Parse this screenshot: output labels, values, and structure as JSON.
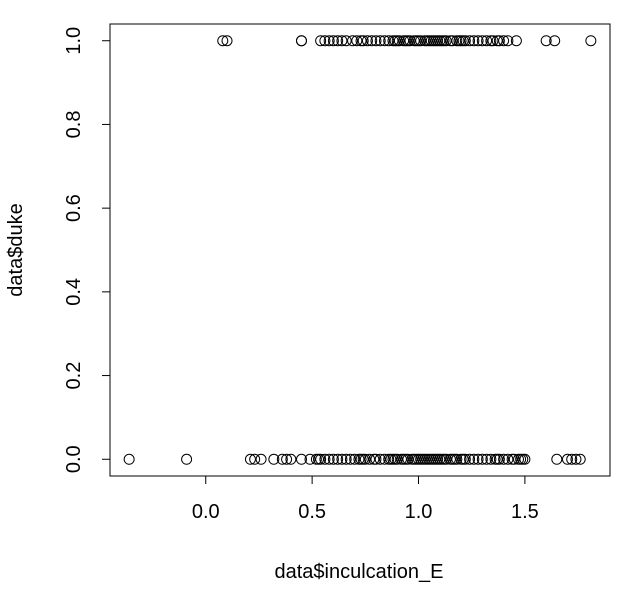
{
  "chart_data": {
    "type": "scatter",
    "xlabel": "data$inculcation_E",
    "ylabel": "data$duke",
    "xlim": [
      -0.45,
      1.9
    ],
    "ylim": [
      -0.04,
      1.04
    ],
    "x_ticks": [
      0.0,
      0.5,
      1.0,
      1.5
    ],
    "x_tick_labels": [
      "0.0",
      "0.5",
      "1.0",
      "1.5"
    ],
    "y_ticks": [
      0.0,
      0.2,
      0.4,
      0.6,
      0.8,
      1.0
    ],
    "y_tick_labels": [
      "0.0",
      "0.2",
      "0.4",
      "0.6",
      "0.8",
      "1.0"
    ],
    "grid": false,
    "marker": "open-circle",
    "color": "#000000",
    "series": [
      {
        "x": [
          0.08,
          0.1,
          0.45,
          0.45,
          0.54,
          0.56,
          0.58,
          0.6,
          0.62,
          0.64,
          0.66,
          0.69,
          0.71,
          0.73,
          0.74,
          0.76,
          0.78,
          0.8,
          0.82,
          0.84,
          0.86,
          0.88,
          0.89,
          0.9,
          0.91,
          0.93,
          0.94,
          0.95,
          0.96,
          0.98,
          0.99,
          1.0,
          1.01,
          1.03,
          1.04,
          1.05,
          1.06,
          1.07,
          1.08,
          1.09,
          1.1,
          1.11,
          1.12,
          1.13,
          1.15,
          1.16,
          1.18,
          1.19,
          1.2,
          1.21,
          1.22,
          1.24,
          1.26,
          1.28,
          1.3,
          1.32,
          1.34,
          1.35,
          1.37,
          1.38,
          1.4,
          1.42,
          1.46,
          1.6,
          1.64,
          1.81
        ],
        "y": [
          1,
          1,
          1,
          1,
          1,
          1,
          1,
          1,
          1,
          1,
          1,
          1,
          1,
          1,
          1,
          1,
          1,
          1,
          1,
          1,
          1,
          1,
          1,
          1,
          1,
          1,
          1,
          1,
          1,
          1,
          1,
          1,
          1,
          1,
          1,
          1,
          1,
          1,
          1,
          1,
          1,
          1,
          1,
          1,
          1,
          1,
          1,
          1,
          1,
          1,
          1,
          1,
          1,
          1,
          1,
          1,
          1,
          1,
          1,
          1,
          1,
          1,
          1,
          1,
          1,
          1
        ]
      },
      {
        "x": [
          -0.36,
          -0.09,
          0.21,
          0.23,
          0.26,
          0.32,
          0.36,
          0.38,
          0.4,
          0.45,
          0.49,
          0.52,
          0.53,
          0.54,
          0.56,
          0.58,
          0.6,
          0.62,
          0.64,
          0.66,
          0.68,
          0.7,
          0.72,
          0.73,
          0.74,
          0.75,
          0.77,
          0.79,
          0.8,
          0.82,
          0.84,
          0.86,
          0.87,
          0.88,
          0.89,
          0.9,
          0.92,
          0.93,
          0.94,
          0.95,
          0.97,
          0.98,
          0.99,
          1.0,
          1.01,
          1.02,
          1.03,
          1.04,
          1.05,
          1.06,
          1.07,
          1.08,
          1.09,
          1.1,
          1.11,
          1.12,
          1.13,
          1.15,
          1.16,
          1.17,
          1.18,
          1.2,
          1.21,
          1.22,
          1.24,
          1.26,
          1.28,
          1.3,
          1.32,
          1.34,
          1.36,
          1.37,
          1.38,
          1.4,
          1.42,
          1.44,
          1.45,
          1.47,
          1.48,
          1.49,
          1.5,
          1.65,
          1.7,
          1.72,
          1.74,
          1.76
        ],
        "y": [
          0,
          0,
          0,
          0,
          0,
          0,
          0,
          0,
          0,
          0,
          0,
          0,
          0,
          0,
          0,
          0,
          0,
          0,
          0,
          0,
          0,
          0,
          0,
          0,
          0,
          0,
          0,
          0,
          0,
          0,
          0,
          0,
          0,
          0,
          0,
          0,
          0,
          0,
          0,
          0,
          0,
          0,
          0,
          0,
          0,
          0,
          0,
          0,
          0,
          0,
          0,
          0,
          0,
          0,
          0,
          0,
          0,
          0,
          0,
          0,
          0,
          0,
          0,
          0,
          0,
          0,
          0,
          0,
          0,
          0,
          0,
          0,
          0,
          0,
          0,
          0,
          0,
          0,
          0,
          0,
          0,
          0,
          0,
          0,
          0,
          0
        ]
      }
    ]
  }
}
